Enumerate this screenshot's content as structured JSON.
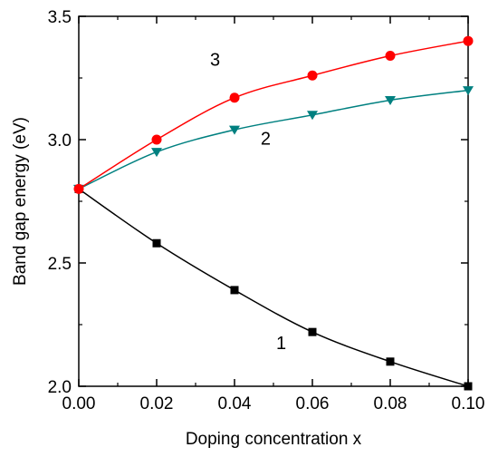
{
  "chart_data": {
    "type": "line",
    "xlabel": "Doping concentration x",
    "ylabel": "Band gap energy (eV)",
    "xlim": [
      0.0,
      0.1
    ],
    "ylim": [
      2.0,
      3.5
    ],
    "x_ticks": [
      "0.00",
      "0.02",
      "0.04",
      "0.06",
      "0.08",
      "0.10"
    ],
    "y_ticks": [
      "2.0",
      "2.5",
      "3.0",
      "3.5"
    ],
    "grid": false,
    "legend": "none",
    "x": [
      0.0,
      0.02,
      0.04,
      0.06,
      0.08,
      0.1
    ],
    "series": [
      {
        "name": "1",
        "values": [
          2.8,
          2.58,
          2.39,
          2.22,
          2.1,
          2.0
        ],
        "marker": "square",
        "color": "#000000",
        "label_at": [
          0.052,
          2.15
        ]
      },
      {
        "name": "2",
        "values": [
          2.8,
          2.95,
          3.04,
          3.1,
          3.16,
          3.2
        ],
        "marker": "triangle-down",
        "color": "#008080",
        "label_at": [
          0.048,
          2.98
        ]
      },
      {
        "name": "3",
        "values": [
          2.8,
          3.0,
          3.17,
          3.26,
          3.34,
          3.4
        ],
        "marker": "circle",
        "color": "#ff0000",
        "label_at": [
          0.035,
          3.3
        ]
      }
    ]
  }
}
